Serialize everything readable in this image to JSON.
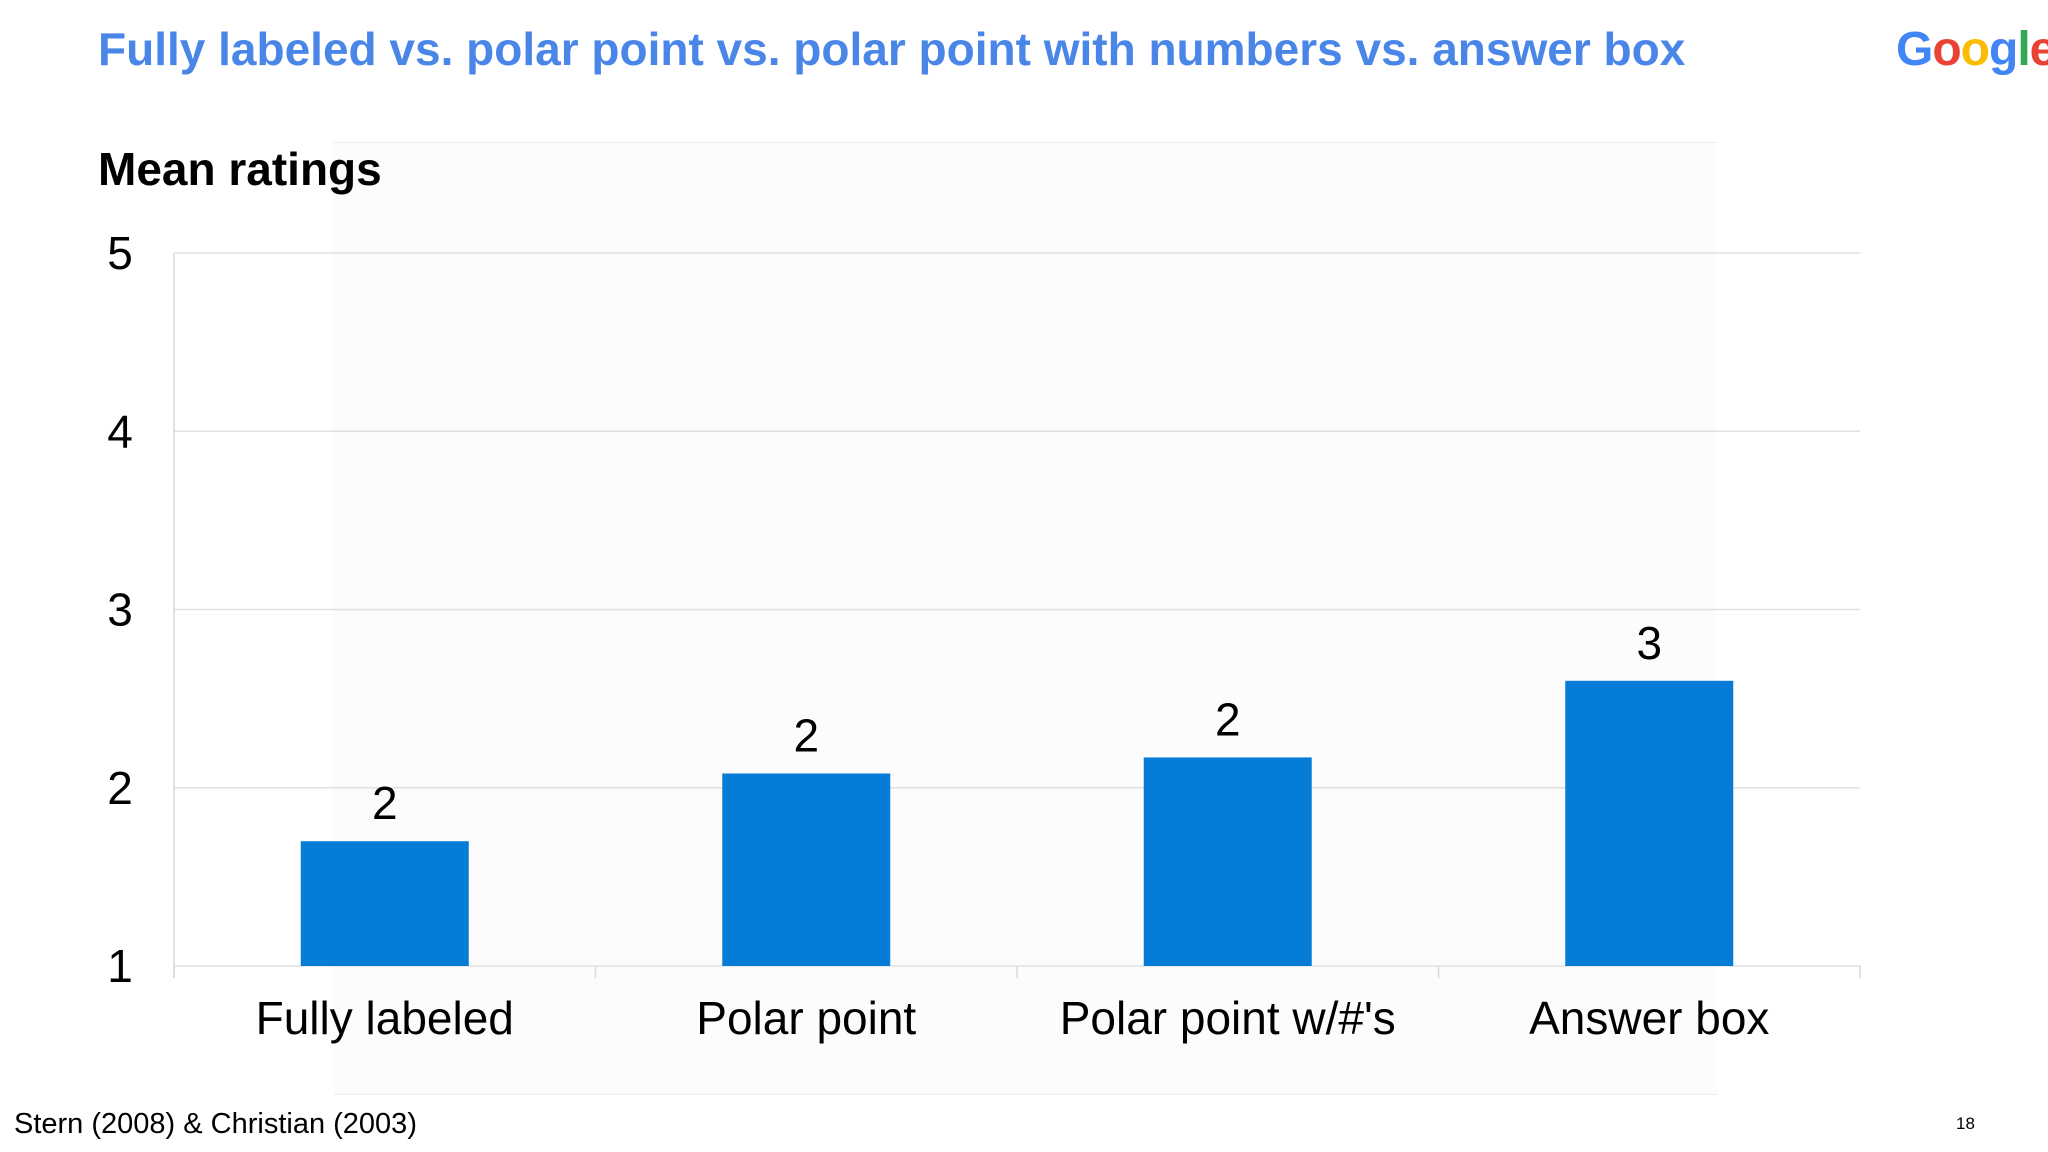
{
  "slide": {
    "title": "Fully labeled vs. polar point vs. polar point with numbers vs. answer box",
    "footnote": "Stern (2008) & Christian (2003)",
    "page_number": "18"
  },
  "logo": {
    "text": "Google",
    "colors": [
      "#4285f4",
      "#ea4335",
      "#fbbc05",
      "#4285f4",
      "#34a853",
      "#ea4335"
    ]
  },
  "colors": {
    "title": "#4a86e8",
    "bar": "#057cd6",
    "gridline": "#e0e0e0"
  },
  "chart_data": {
    "type": "bar",
    "title": "Mean ratings",
    "xlabel": "",
    "ylabel": "",
    "categories": [
      "Fully labeled",
      "Polar point",
      "Polar point w/#'s",
      "Answer box"
    ],
    "values": [
      1.7,
      2.08,
      2.17,
      2.6
    ],
    "data_labels": [
      "2",
      "2",
      "2",
      "3"
    ],
    "ylim": [
      1,
      5
    ],
    "yticks": [
      "1",
      "2",
      "3",
      "4",
      "5"
    ],
    "grid": true,
    "legend": "none"
  }
}
